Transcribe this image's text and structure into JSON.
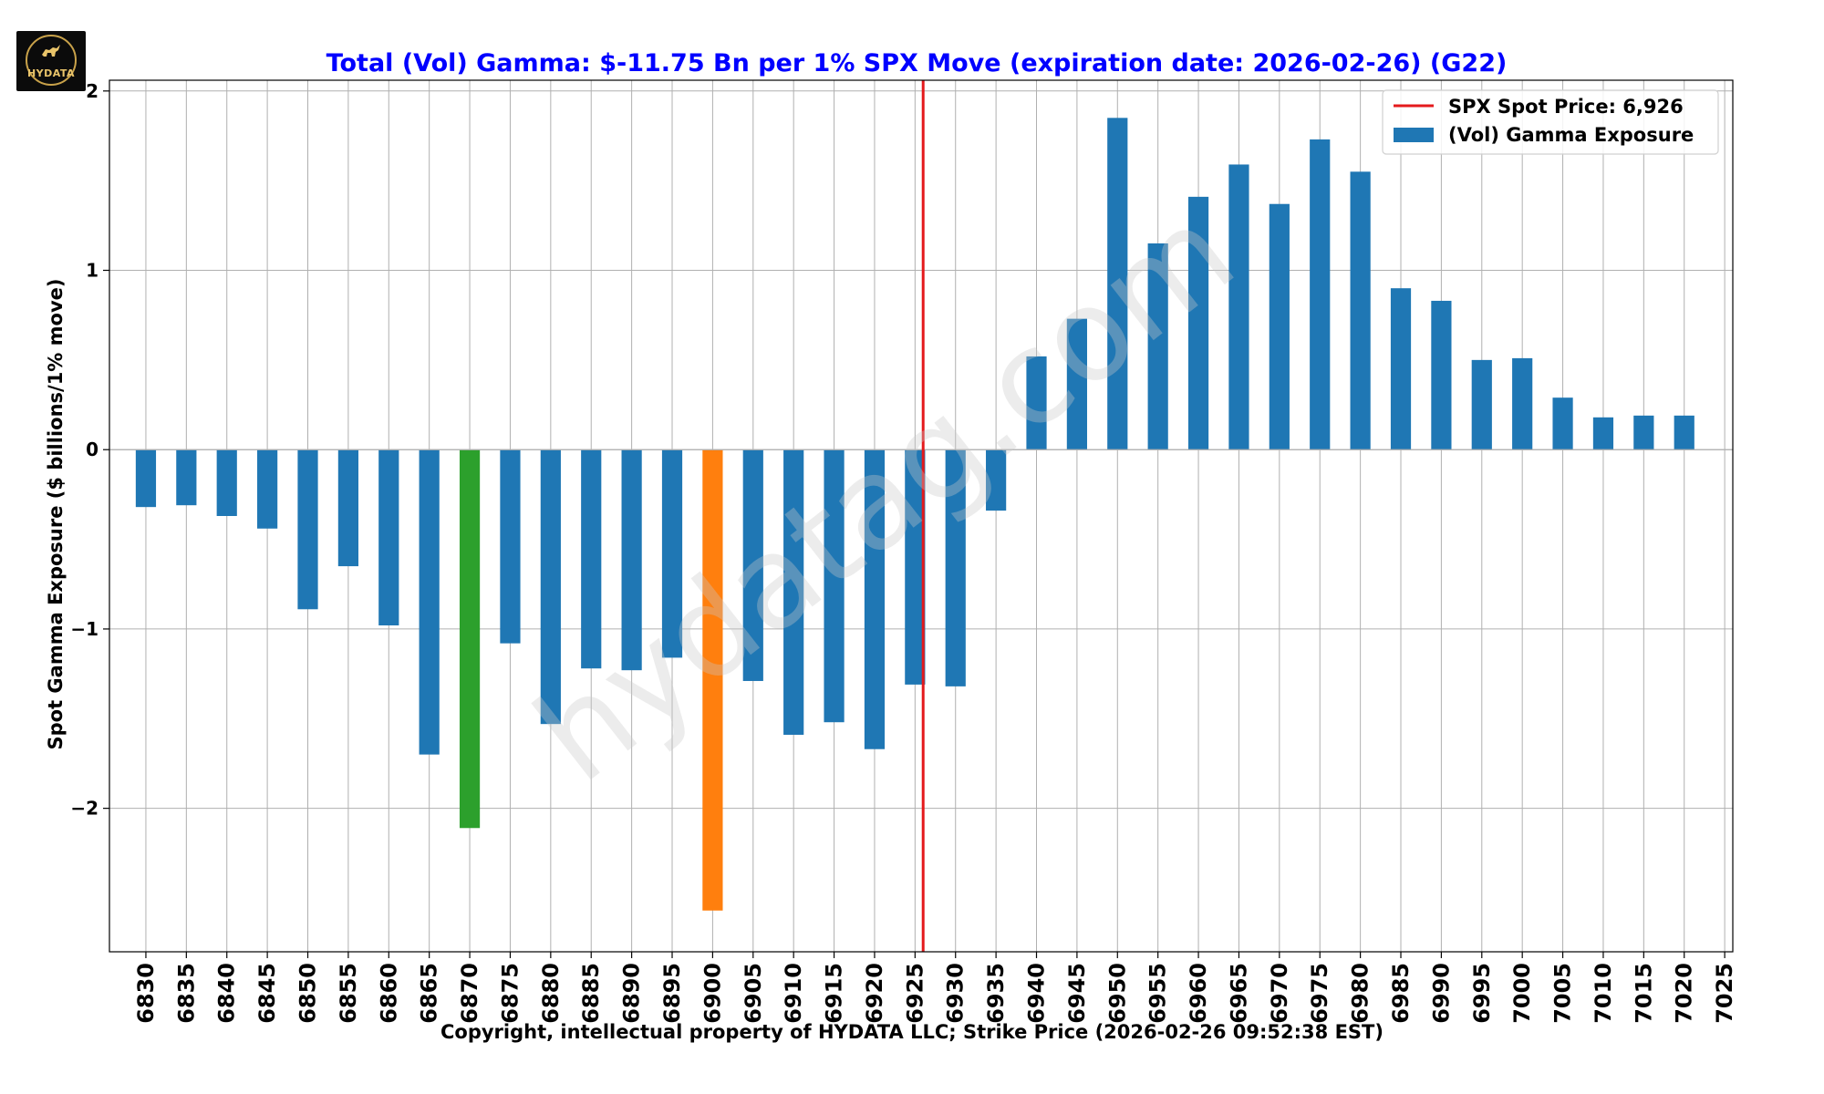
{
  "logo": {
    "text": "HYDATA"
  },
  "watermark": "hydatag.com",
  "colors": {
    "bar": "#1f77b4",
    "highlight_green": "#2ca02c",
    "highlight_orange": "#ff7f0e",
    "spot_line": "#e41a1c",
    "title": "#0000ff",
    "grid": "#b0b0b0"
  },
  "chart_data": {
    "type": "bar",
    "title": "Total (Vol) Gamma: $-11.75 Bn per 1% SPX Move (expiration date: 2026-02-26) (G22)",
    "xlabel": "Copyright, intellectual property of HYDATA LLC; Strike Price (2026-02-26 09:52:38 EST)",
    "ylabel": "Spot Gamma Exposure ($ billions/1% move)",
    "ylim": [
      -2.8,
      2.06
    ],
    "yticks": [
      2,
      1,
      0,
      -1,
      -2
    ],
    "ytick_labels": [
      "2",
      "1",
      "0",
      "−1",
      "−2"
    ],
    "grid": true,
    "legend_placement": "top-right",
    "categories": [
      "6830",
      "6835",
      "6840",
      "6845",
      "6850",
      "6855",
      "6860",
      "6865",
      "6870",
      "6875",
      "6880",
      "6885",
      "6890",
      "6895",
      "6900",
      "6905",
      "6910",
      "6915",
      "6920",
      "6925",
      "6930",
      "6935",
      "6940",
      "6945",
      "6950",
      "6955",
      "6960",
      "6965",
      "6970",
      "6975",
      "6980",
      "6985",
      "6990",
      "6995",
      "7000",
      "7005",
      "7010",
      "7015",
      "7020",
      "7025"
    ],
    "series": [
      {
        "name": "(Vol) Gamma Exposure",
        "values": [
          -0.32,
          -0.31,
          -0.37,
          -0.44,
          -0.89,
          -0.65,
          -0.98,
          -1.7,
          -2.11,
          -1.08,
          -1.53,
          -1.22,
          -1.23,
          -1.16,
          -2.57,
          -1.29,
          -1.59,
          -1.52,
          -1.67,
          -1.31,
          -1.32,
          -0.34,
          0.52,
          0.73,
          1.85,
          1.15,
          1.41,
          1.59,
          1.37,
          1.73,
          1.55,
          0.9,
          0.83,
          0.5,
          0.51,
          0.29,
          0.18,
          0.19,
          0.19,
          null
        ],
        "highlights": {
          "6870": "highlight_green",
          "6900": "highlight_orange"
        }
      }
    ],
    "spot": {
      "label": "SPX Spot Price: 6,926",
      "value": 6926
    }
  }
}
